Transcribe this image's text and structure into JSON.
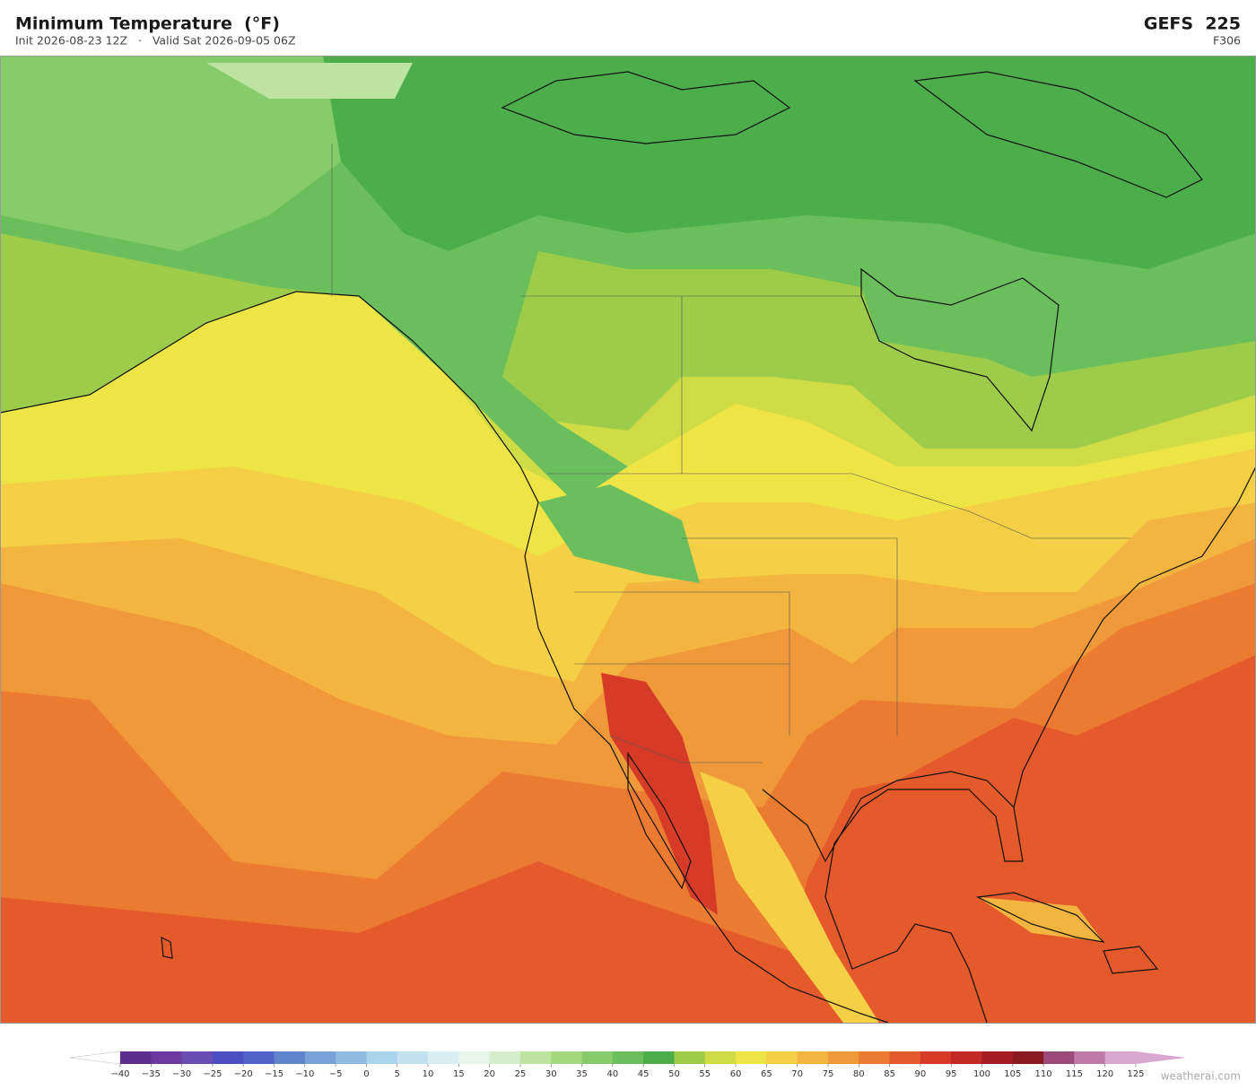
{
  "header": {
    "title": "Minimum Temperature  (°F)",
    "subtitle": "Init 2026-08-23 12Z   ·   Valid Sat 2026-09-05 06Z",
    "model": "GEFS  225",
    "forecast_hour": "F306"
  },
  "colorbar": {
    "ticks": [
      {
        "value": -40,
        "label": "−40"
      },
      {
        "value": -35,
        "label": "−35"
      },
      {
        "value": -30,
        "label": "−30"
      },
      {
        "value": -25,
        "label": "−25"
      },
      {
        "value": -20,
        "label": "−20"
      },
      {
        "value": -15,
        "label": "−15"
      },
      {
        "value": -10,
        "label": "−10"
      },
      {
        "value": -5,
        "label": "−5"
      },
      0,
      5,
      10,
      15,
      20,
      25,
      30,
      35,
      40,
      45,
      50,
      55,
      60,
      65,
      70,
      75,
      80,
      85,
      90,
      95,
      100,
      105,
      110,
      115,
      120,
      125
    ],
    "colors": [
      "#5b2d8e",
      "#6a3a9e",
      "#6a4db0",
      "#4b4fc0",
      "#5064c8",
      "#5f84cc",
      "#78a2d8",
      "#8fbde0",
      "#a8d3ea",
      "#c3e2ef",
      "#d8eef3",
      "#e8f5ea",
      "#d6edcc",
      "#bde3a0",
      "#a3d87f",
      "#86cc6a",
      "#6abf5c",
      "#4cae4b",
      "#9dcb4a",
      "#d0dc45",
      "#ede445",
      "#f5cf45",
      "#f3b53f",
      "#f0993a",
      "#ec7b32",
      "#e55a2b",
      "#d63b27",
      "#c12a25",
      "#a31d22",
      "#8a1a22",
      "#9b4a7a",
      "#c07aaa",
      "#d8a8d0"
    ],
    "under_color": "#ffffff",
    "over_color": "#d8a8d0"
  },
  "footer": {
    "watermark": "weatherai.com"
  }
}
